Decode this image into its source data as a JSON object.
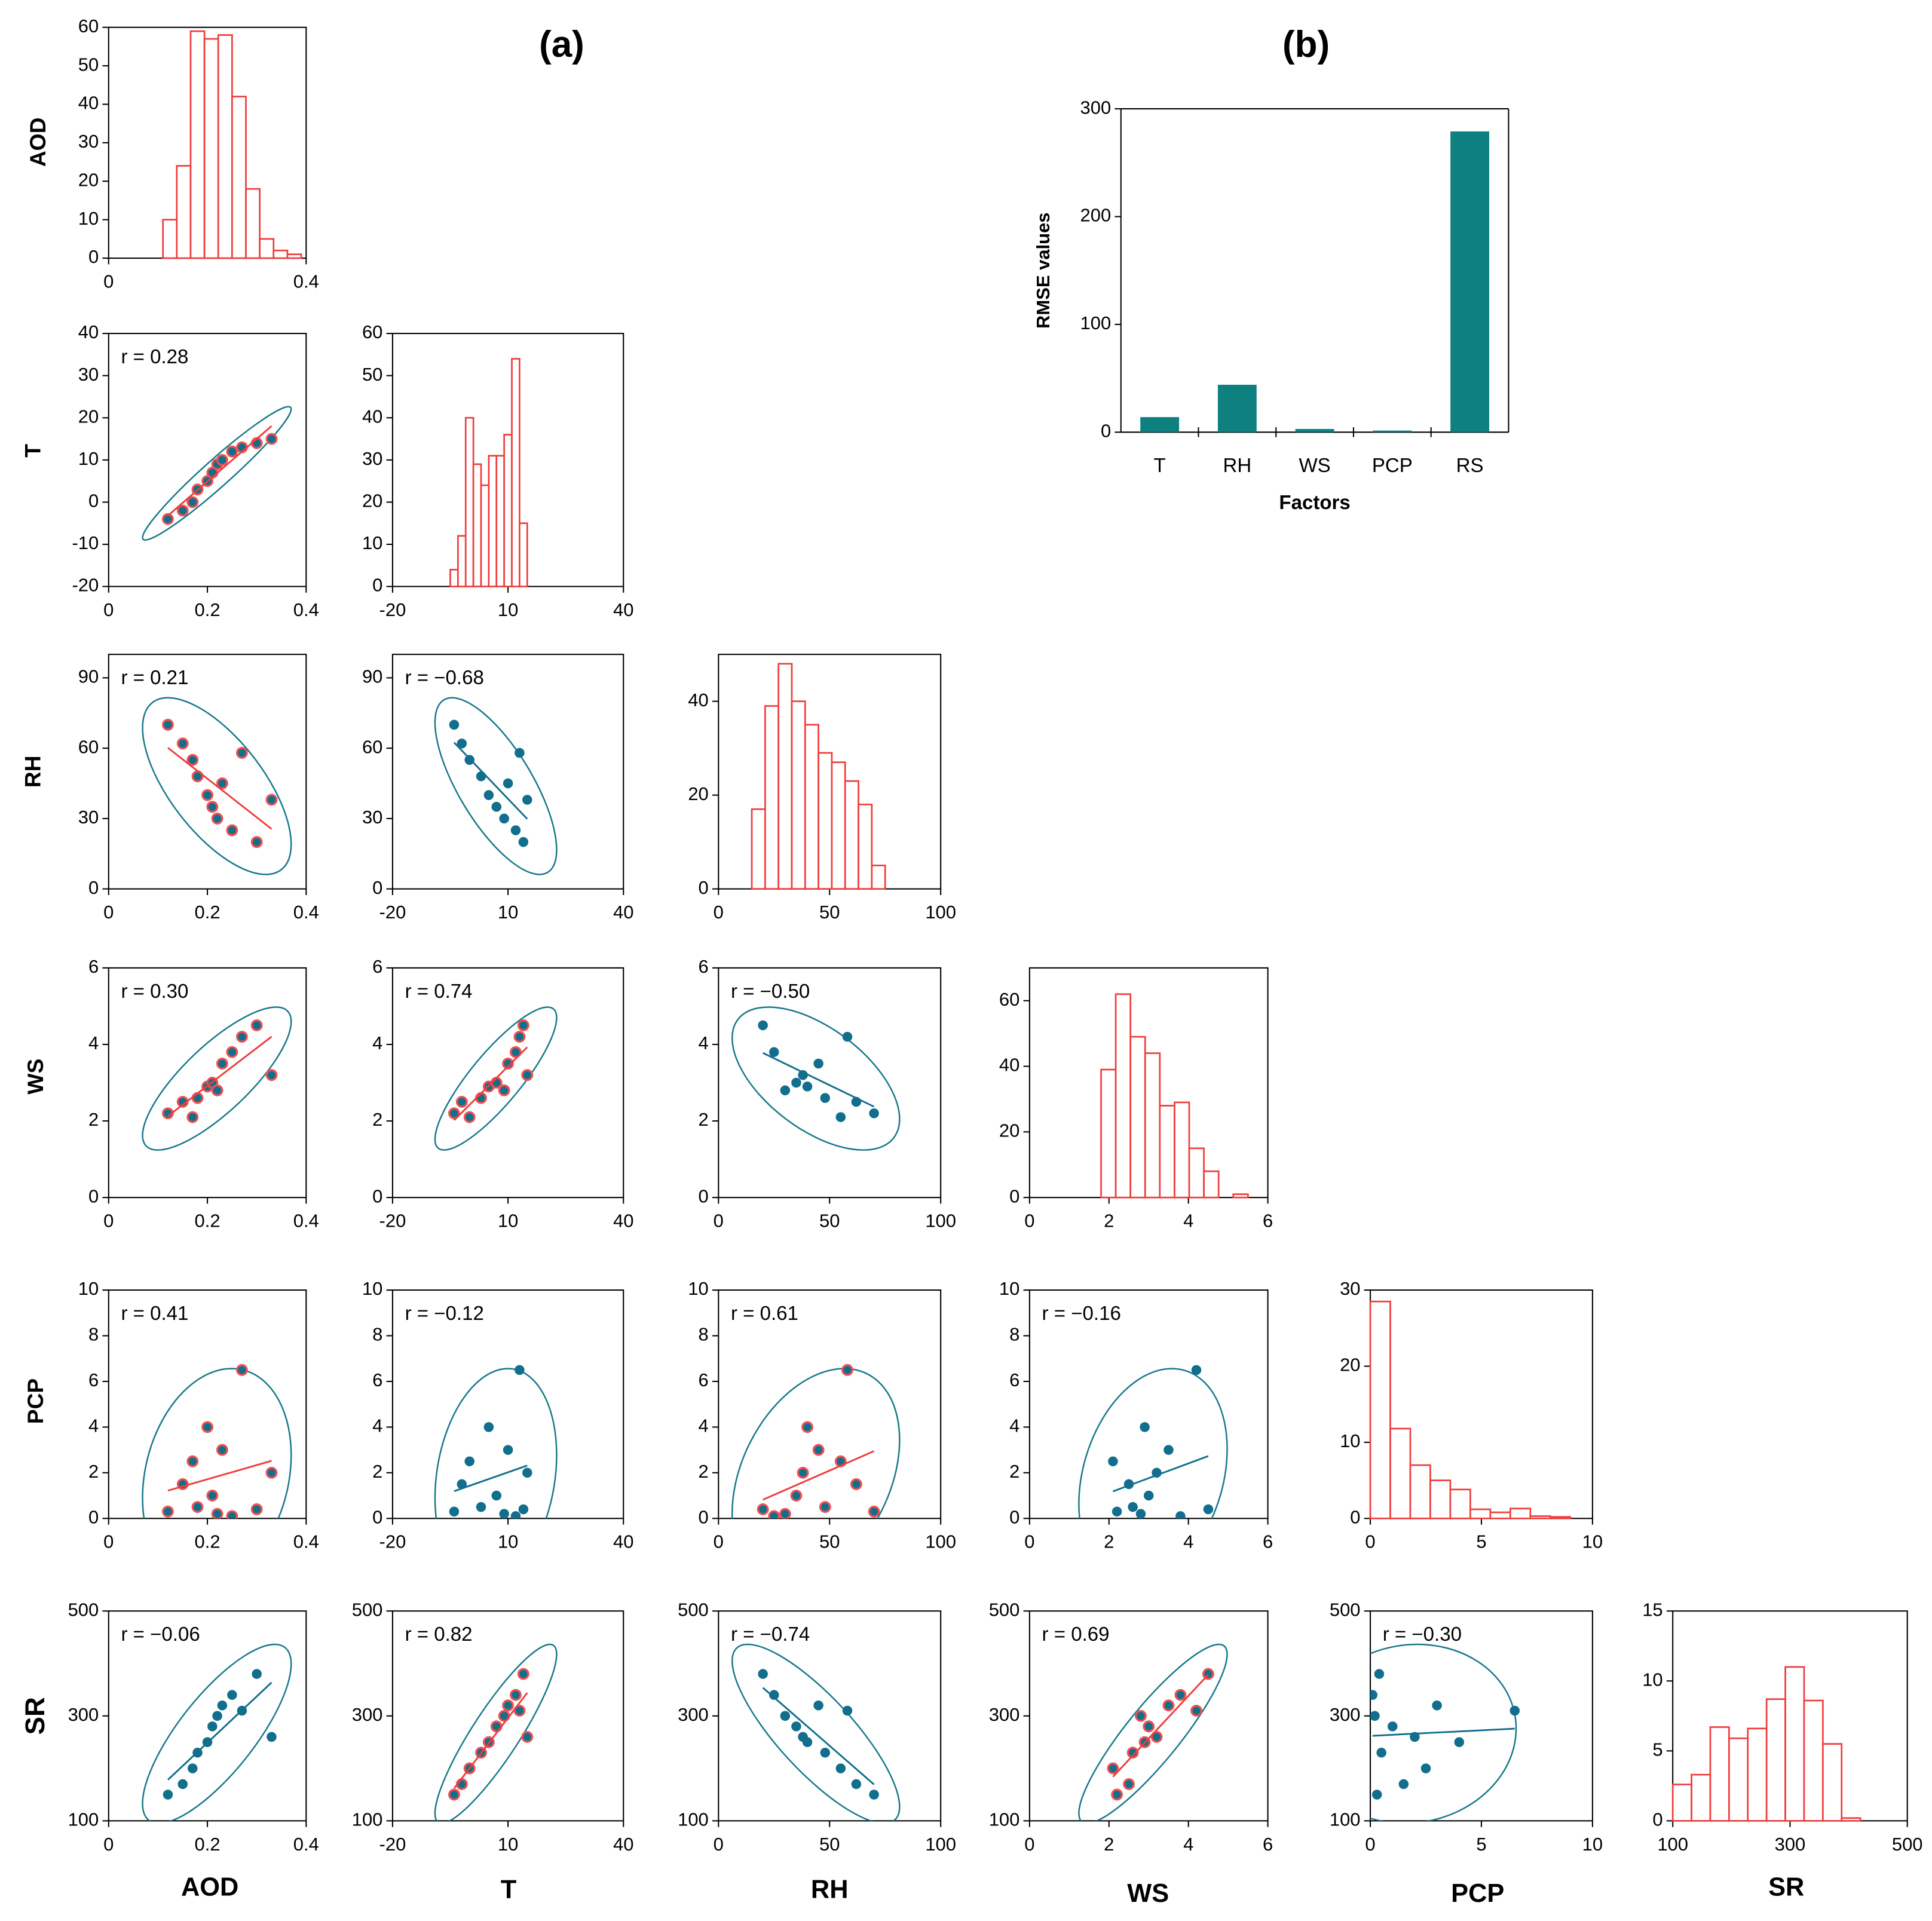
{
  "panel_labels": [
    "(a)",
    "(b)"
  ],
  "row_labels": [
    "AOD",
    "T",
    "RH",
    "WS",
    "PCP",
    "SR"
  ],
  "column_labels": [
    "AOD",
    "T",
    "RH",
    "WS",
    "PCP",
    "SR"
  ],
  "chart_data": [
    {
      "type": "histogram",
      "bins": [
        0.11,
        0.138,
        0.166,
        0.194,
        0.222,
        0.25,
        0.278,
        0.306,
        0.334,
        0.362,
        0.39
      ],
      "counts": [
        10,
        24,
        59,
        57,
        58,
        42,
        18,
        5,
        2,
        1
      ],
      "color": "#f03c3c",
      "xlim": [
        0,
        0.4
      ],
      "xticks": [
        0,
        0.4
      ],
      "ylim": [
        0,
        60
      ],
      "yticks": [
        0,
        10,
        20,
        30,
        40,
        50,
        60
      ]
    },
    {
      "type": "histogram",
      "bins": [
        -5,
        -3,
        -1,
        1,
        3,
        5,
        7,
        9,
        11,
        13,
        15
      ],
      "counts": [
        4,
        12,
        40,
        29,
        24,
        31,
        31,
        36,
        54,
        15
      ],
      "color": "#f03c3c",
      "xlim": [
        -20,
        40
      ],
      "xticks": [
        -20,
        10,
        40
      ],
      "ylim": [
        0,
        60
      ],
      "yticks": [
        0,
        10,
        20,
        30,
        40,
        50,
        60
      ]
    },
    {
      "type": "histogram",
      "bins": [
        15,
        21,
        27,
        33,
        39,
        45,
        51,
        57,
        63,
        69,
        75
      ],
      "counts": [
        17,
        39,
        48,
        40,
        35,
        29,
        27,
        23,
        18,
        5
      ],
      "color": "#f03c3c",
      "xlim": [
        0,
        100
      ],
      "xticks": [
        0,
        50,
        100
      ],
      "ylim": [
        0,
        50
      ],
      "yticks": [
        0,
        20,
        40
      ]
    },
    {
      "type": "histogram",
      "bins": [
        1.8,
        2.17,
        2.54,
        2.91,
        3.28,
        3.65,
        4.02,
        4.39,
        4.76,
        5.13,
        5.5
      ],
      "counts": [
        39,
        62,
        49,
        44,
        28,
        29,
        15,
        8,
        0,
        1
      ],
      "color": "#f03c3c",
      "xlim": [
        0,
        6
      ],
      "xticks": [
        0,
        2,
        4,
        6
      ],
      "ylim": [
        0,
        70
      ],
      "yticks": [
        0,
        20,
        40,
        60
      ]
    },
    {
      "type": "histogram",
      "bins": [
        0,
        0.9,
        1.8,
        2.7,
        3.6,
        4.5,
        5.4,
        6.3,
        7.2,
        8.1,
        9
      ],
      "counts": [
        28.5,
        11.8,
        7,
        5,
        3.8,
        1.2,
        0.8,
        1.3,
        0.3,
        0.2
      ],
      "color": "#f03c3c",
      "xlim": [
        0,
        10
      ],
      "xticks": [
        0,
        5,
        10
      ],
      "ylim": [
        0,
        30
      ],
      "yticks": [
        0,
        10,
        20,
        30
      ]
    },
    {
      "type": "histogram",
      "bins": [
        100,
        132,
        164,
        196,
        228,
        260,
        292,
        324,
        356,
        388,
        420
      ],
      "counts": [
        2.6,
        3.3,
        6.7,
        5.9,
        6.6,
        8.7,
        11,
        8.6,
        5.5,
        0.2
      ],
      "color": "#f03c3c",
      "xlim": [
        100,
        500
      ],
      "xticks": [
        100,
        300,
        500
      ],
      "ylim": [
        0,
        15
      ],
      "yticks": [
        0,
        5,
        10,
        15
      ]
    },
    {
      "type": "scatter",
      "annotation": "r = 0.28",
      "x": [
        0.12,
        0.15,
        0.17,
        0.18,
        0.2,
        0.21,
        0.22,
        0.23,
        0.25,
        0.27,
        0.3,
        0.33
      ],
      "y": [
        -4,
        -2,
        0,
        3,
        5,
        7,
        9,
        10,
        12,
        13,
        14,
        15
      ],
      "color": "#116e8c",
      "edge_color": "#f05050",
      "line_color": "#f03c3c",
      "xlim": [
        0,
        0.4
      ],
      "xticks": [
        0,
        0.2,
        0.4
      ],
      "ylim": [
        -20,
        40
      ],
      "yticks": [
        -20,
        -10,
        0,
        10,
        20,
        30,
        40
      ]
    },
    {
      "type": "scatter",
      "annotation": "r = 0.21",
      "x": [
        0.12,
        0.15,
        0.17,
        0.18,
        0.2,
        0.21,
        0.22,
        0.23,
        0.25,
        0.27,
        0.3,
        0.33
      ],
      "y": [
        70,
        62,
        55,
        48,
        40,
        35,
        30,
        45,
        25,
        58,
        20,
        38
      ],
      "color": "#116e8c",
      "edge_color": "#f05050",
      "line_color": "#f03c3c",
      "xlim": [
        0,
        0.4
      ],
      "xticks": [
        0,
        0.2,
        0.4
      ],
      "ylim": [
        0,
        100
      ],
      "yticks": [
        0,
        30,
        60,
        90
      ]
    },
    {
      "type": "scatter",
      "annotation": "r = −0.68",
      "x": [
        -4,
        -2,
        0,
        3,
        5,
        7,
        9,
        10,
        12,
        13,
        14,
        15
      ],
      "y": [
        70,
        62,
        55,
        48,
        40,
        35,
        30,
        45,
        25,
        58,
        20,
        38
      ],
      "color": "#116e8c",
      "line_color": "#116e8c",
      "xlim": [
        -20,
        40
      ],
      "xticks": [
        -20,
        10,
        40
      ],
      "ylim": [
        0,
        100
      ],
      "yticks": [
        0,
        30,
        60,
        90
      ]
    },
    {
      "type": "scatter",
      "annotation": "r = 0.30",
      "x": [
        0.12,
        0.15,
        0.17,
        0.18,
        0.2,
        0.21,
        0.22,
        0.23,
        0.25,
        0.27,
        0.3,
        0.33
      ],
      "y": [
        2.2,
        2.5,
        2.1,
        2.6,
        2.9,
        3,
        2.8,
        3.5,
        3.8,
        4.2,
        4.5,
        3.2
      ],
      "color": "#116e8c",
      "edge_color": "#f05050",
      "line_color": "#f03c3c",
      "xlim": [
        0,
        0.4
      ],
      "xticks": [
        0,
        0.2,
        0.4
      ],
      "ylim": [
        0,
        6
      ],
      "yticks": [
        0,
        2,
        4,
        6
      ]
    },
    {
      "type": "scatter",
      "annotation": "r = 0.74",
      "x": [
        -4,
        -2,
        0,
        3,
        5,
        7,
        9,
        10,
        12,
        13,
        14,
        15
      ],
      "y": [
        2.2,
        2.5,
        2.1,
        2.6,
        2.9,
        3,
        2.8,
        3.5,
        3.8,
        4.2,
        4.5,
        3.2
      ],
      "color": "#116e8c",
      "edge_color": "#f05050",
      "line_color": "#f03c3c",
      "xlim": [
        -20,
        40
      ],
      "xticks": [
        -20,
        10,
        40
      ],
      "ylim": [
        0,
        6
      ],
      "yticks": [
        0,
        2,
        4,
        6
      ]
    },
    {
      "type": "scatter",
      "annotation": "r = −0.50",
      "x": [
        70,
        62,
        55,
        48,
        40,
        35,
        30,
        45,
        25,
        58,
        20,
        38
      ],
      "y": [
        2.2,
        2.5,
        2.1,
        2.6,
        2.9,
        3,
        2.8,
        3.5,
        3.8,
        4.2,
        4.5,
        3.2
      ],
      "color": "#116e8c",
      "line_color": "#116e8c",
      "xlim": [
        0,
        100
      ],
      "xticks": [
        0,
        50,
        100
      ],
      "ylim": [
        0,
        6
      ],
      "yticks": [
        0,
        2,
        4,
        6
      ]
    },
    {
      "type": "scatter",
      "annotation": "r = 0.41",
      "x": [
        0.12,
        0.15,
        0.17,
        0.18,
        0.2,
        0.21,
        0.22,
        0.23,
        0.25,
        0.27,
        0.3,
        0.33
      ],
      "y": [
        0.3,
        1.5,
        2.5,
        0.5,
        4,
        1,
        0.2,
        3,
        0.1,
        6.5,
        0.4,
        2
      ],
      "color": "#116e8c",
      "edge_color": "#f05050",
      "line_color": "#f03c3c",
      "xlim": [
        0,
        0.4
      ],
      "xticks": [
        0,
        0.2,
        0.4
      ],
      "ylim": [
        0,
        10
      ],
      "yticks": [
        0,
        2,
        4,
        6,
        8,
        10
      ]
    },
    {
      "type": "scatter",
      "annotation": "r = −0.12",
      "x": [
        -4,
        -2,
        0,
        3,
        5,
        7,
        9,
        10,
        12,
        13,
        14,
        15
      ],
      "y": [
        0.3,
        1.5,
        2.5,
        0.5,
        4,
        1,
        0.2,
        3,
        0.1,
        6.5,
        0.4,
        2
      ],
      "color": "#116e8c",
      "line_color": "#116e8c",
      "xlim": [
        -20,
        40
      ],
      "xticks": [
        -20,
        10,
        40
      ],
      "ylim": [
        0,
        10
      ],
      "yticks": [
        0,
        2,
        4,
        6,
        8,
        10
      ]
    },
    {
      "type": "scatter",
      "annotation": "r = 0.61",
      "x": [
        70,
        62,
        55,
        48,
        40,
        35,
        30,
        45,
        25,
        58,
        20,
        38
      ],
      "y": [
        0.3,
        1.5,
        2.5,
        0.5,
        4,
        1,
        0.2,
        3,
        0.1,
        6.5,
        0.4,
        2
      ],
      "color": "#116e8c",
      "edge_color": "#f05050",
      "line_color": "#f03c3c",
      "xlim": [
        0,
        100
      ],
      "xticks": [
        0,
        50,
        100
      ],
      "ylim": [
        0,
        10
      ],
      "yticks": [
        0,
        2,
        4,
        6,
        8,
        10
      ]
    },
    {
      "type": "scatter",
      "annotation": "r = −0.16",
      "x": [
        2.2,
        2.5,
        2.1,
        2.6,
        2.9,
        3,
        2.8,
        3.5,
        3.8,
        4.2,
        4.5,
        3.2
      ],
      "y": [
        0.3,
        1.5,
        2.5,
        0.5,
        4,
        1,
        0.2,
        3,
        0.1,
        6.5,
        0.4,
        2
      ],
      "color": "#116e8c",
      "line_color": "#116e8c",
      "xlim": [
        0,
        6
      ],
      "xticks": [
        0,
        2,
        4,
        6
      ],
      "ylim": [
        0,
        10
      ],
      "yticks": [
        0,
        2,
        4,
        6,
        8,
        10
      ]
    },
    {
      "type": "scatter",
      "annotation": "r = −0.06",
      "x": [
        0.12,
        0.15,
        0.17,
        0.18,
        0.2,
        0.21,
        0.22,
        0.23,
        0.25,
        0.27,
        0.3,
        0.33
      ],
      "y": [
        150,
        170,
        200,
        230,
        250,
        280,
        300,
        320,
        340,
        310,
        380,
        260
      ],
      "color": "#116e8c",
      "line_color": "#116e8c",
      "xlim": [
        0,
        0.4
      ],
      "xticks": [
        0,
        0.2,
        0.4
      ],
      "ylim": [
        100,
        500
      ],
      "yticks": [
        100,
        300,
        500
      ]
    },
    {
      "type": "scatter",
      "annotation": "r = 0.82",
      "x": [
        -4,
        -2,
        0,
        3,
        5,
        7,
        9,
        10,
        12,
        13,
        14,
        15
      ],
      "y": [
        150,
        170,
        200,
        230,
        250,
        280,
        300,
        320,
        340,
        310,
        380,
        260
      ],
      "color": "#116e8c",
      "edge_color": "#f05050",
      "line_color": "#f03c3c",
      "xlim": [
        -20,
        40
      ],
      "xticks": [
        -20,
        10,
        40
      ],
      "ylim": [
        100,
        500
      ],
      "yticks": [
        100,
        300,
        500
      ]
    },
    {
      "type": "scatter",
      "annotation": "r = −0.74",
      "x": [
        70,
        62,
        55,
        48,
        40,
        35,
        30,
        45,
        25,
        58,
        20,
        38
      ],
      "y": [
        150,
        170,
        200,
        230,
        250,
        280,
        300,
        320,
        340,
        310,
        380,
        260
      ],
      "color": "#116e8c",
      "line_color": "#116e8c",
      "xlim": [
        0,
        100
      ],
      "xticks": [
        0,
        50,
        100
      ],
      "ylim": [
        100,
        500
      ],
      "yticks": [
        100,
        300,
        500
      ]
    },
    {
      "type": "scatter",
      "annotation": "r = 0.69",
      "x": [
        2.2,
        2.5,
        2.1,
        2.6,
        2.9,
        3,
        2.8,
        3.5,
        3.8,
        4.2,
        4.5,
        3.2
      ],
      "y": [
        150,
        170,
        200,
        230,
        250,
        280,
        300,
        320,
        340,
        310,
        380,
        260
      ],
      "color": "#116e8c",
      "edge_color": "#f05050",
      "line_color": "#f03c3c",
      "xlim": [
        0,
        6
      ],
      "xticks": [
        0,
        2,
        4,
        6
      ],
      "ylim": [
        100,
        500
      ],
      "yticks": [
        100,
        300,
        500
      ]
    },
    {
      "type": "scatter",
      "annotation": "r = −0.30",
      "x": [
        0.3,
        1.5,
        2.5,
        0.5,
        4,
        1,
        0.2,
        3,
        0.1,
        6.5,
        0.4,
        2
      ],
      "y": [
        150,
        170,
        200,
        230,
        250,
        280,
        300,
        320,
        340,
        310,
        380,
        260
      ],
      "color": "#116e8c",
      "line_color": "#116e8c",
      "xlim": [
        0,
        10
      ],
      "xticks": [
        0,
        5,
        10
      ],
      "ylim": [
        100,
        500
      ],
      "yticks": [
        100,
        300,
        500
      ]
    },
    {
      "type": "bar",
      "categories": [
        "T",
        "RH",
        "WS",
        "PCP",
        "RS"
      ],
      "values": [
        14,
        44,
        3,
        1.5,
        279
      ],
      "color": "#0e8080",
      "ylim": [
        0,
        300
      ],
      "yticks": [
        0,
        100,
        200,
        300
      ],
      "x_label": "Factors",
      "y_label": "RMSE values"
    }
  ]
}
